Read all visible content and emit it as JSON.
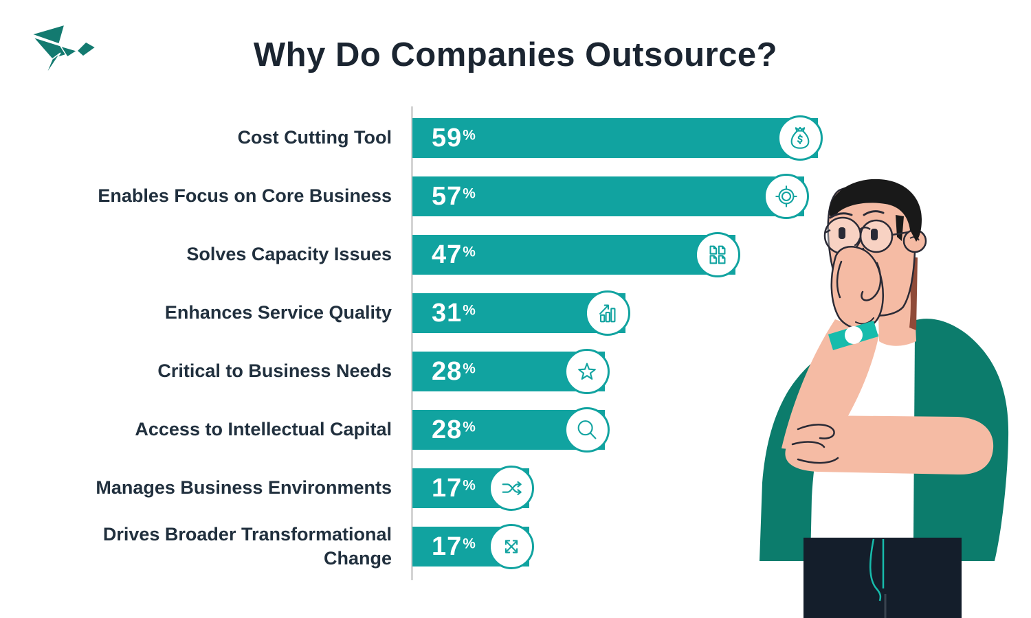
{
  "theme": {
    "teal": "#11A3A0",
    "dark_teal": "#0C7C6C",
    "title_color": "#1B2531",
    "label_color": "#21303E",
    "axis_color": "#D4D4D4"
  },
  "logo": {
    "name": "origami-bird"
  },
  "title": "Why Do Companies Outsource?",
  "chart_data": {
    "type": "bar",
    "orientation": "horizontal",
    "title": "Why Do Companies Outsource?",
    "categories": [
      "Cost Cutting Tool",
      "Enables Focus on Core Business",
      "Solves Capacity Issues",
      "Enhances Service Quality",
      "Critical to Business Needs",
      "Access to Intellectual Capital",
      "Manages Business Environments",
      "Drives Broader Transformational Change"
    ],
    "values": [
      59,
      57,
      47,
      31,
      28,
      28,
      17,
      17
    ],
    "value_suffix": "%",
    "xlim": [
      0,
      60
    ],
    "bar_color": "#11A3A0",
    "grid": false,
    "legend": false,
    "icons": [
      "money-bag",
      "target",
      "documents",
      "growth-chart",
      "star",
      "magnifier",
      "shuffle",
      "expand"
    ]
  },
  "illustration": {
    "name": "thinking-man"
  }
}
